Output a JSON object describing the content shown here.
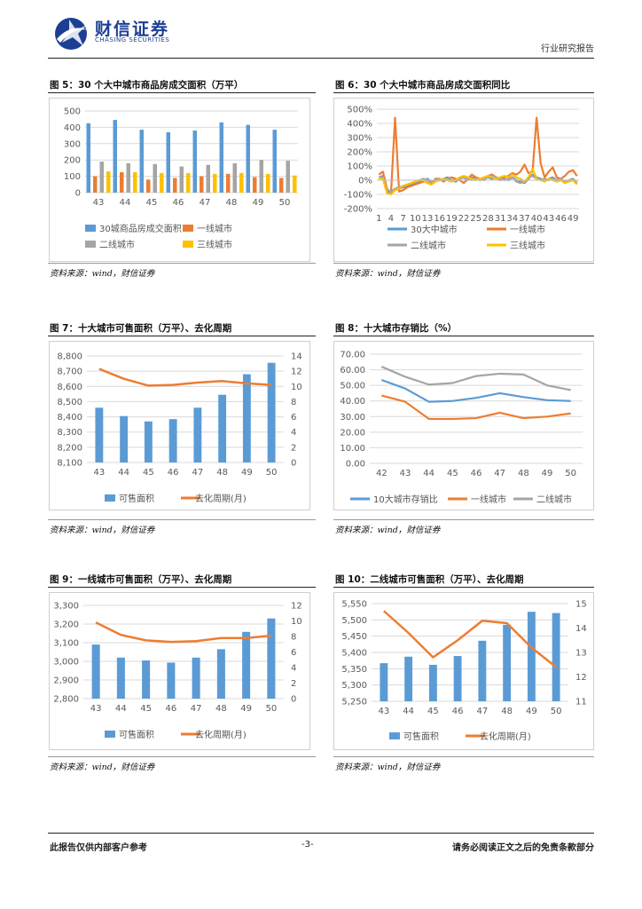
{
  "header": {
    "company_cn": "财信证券",
    "company_en": "CHASING SECURITIES",
    "report_type": "行业研究报告"
  },
  "footer": {
    "left": "此报告仅供内部客户参考",
    "page": "-3-",
    "right": "请务必阅读正文之后的免责条款部分"
  },
  "source_text": "资料来源：wind，财信证券",
  "colors": {
    "blue": "#5B9BD5",
    "orange": "#ED7D31",
    "gray": "#A5A5A5",
    "yellow": "#FFC000"
  },
  "figures": [
    {
      "title": "图 5：30 个大中城市商品房成交面积（万平）"
    },
    {
      "title": "图 6：30 个大中城市商品房成交面积同比"
    },
    {
      "title": "图 7：十大城市可售面积（万平）、去化周期"
    },
    {
      "title": "图 8：十大城市存销比（%）"
    },
    {
      "title": "图 9：一线城市可售面积（万平）、去化周期"
    },
    {
      "title": "图 10：二线城市可售面积（万平）、去化周期"
    }
  ],
  "chart_data": [
    {
      "type": "bar",
      "categories": [
        "43",
        "44",
        "45",
        "46",
        "47",
        "48",
        "49",
        "50"
      ],
      "series": [
        {
          "name": "30城商品房成交面积",
          "color": "#5B9BD5",
          "values": [
            425,
            445,
            385,
            370,
            380,
            430,
            415,
            385
          ]
        },
        {
          "name": "一线城市",
          "color": "#ED7D31",
          "values": [
            100,
            125,
            80,
            90,
            100,
            115,
            95,
            90
          ]
        },
        {
          "name": "二线城市",
          "color": "#A5A5A5",
          "values": [
            190,
            180,
            175,
            160,
            170,
            180,
            200,
            195
          ]
        },
        {
          "name": "三线城市",
          "color": "#FFC000",
          "values": [
            130,
            125,
            120,
            120,
            115,
            120,
            115,
            105
          ]
        }
      ],
      "ylim": [
        0,
        500
      ],
      "yticks": [
        "0",
        "100",
        "200",
        "300",
        "400",
        "500"
      ]
    },
    {
      "type": "line",
      "x": [
        1,
        2,
        3,
        4,
        5,
        6,
        7,
        8,
        9,
        10,
        11,
        12,
        13,
        14,
        15,
        16,
        17,
        18,
        19,
        20,
        21,
        22,
        23,
        24,
        25,
        26,
        27,
        28,
        29,
        30,
        31,
        32,
        33,
        34,
        35,
        36,
        37,
        38,
        39,
        40,
        41,
        42,
        43,
        44,
        45,
        46,
        47,
        48,
        49,
        50
      ],
      "xticks": [
        "1",
        "4",
        "7",
        "10",
        "13",
        "16",
        "19",
        "22",
        "25",
        "28",
        "31",
        "34",
        "37",
        "40",
        "43",
        "46",
        "49"
      ],
      "series": [
        {
          "name": "30大中城市",
          "color": "#5B9BD5",
          "values": [
            20,
            30,
            -80,
            -90,
            -70,
            -60,
            -50,
            -40,
            -30,
            -20,
            -10,
            0,
            10,
            -10,
            0,
            0,
            10,
            20,
            0,
            -10,
            10,
            20,
            0,
            20,
            10,
            0,
            10,
            20,
            10,
            20,
            0,
            10,
            0,
            20,
            0,
            -10,
            -20,
            10,
            40,
            20,
            10,
            0,
            10,
            20,
            0,
            10,
            -10,
            0,
            10,
            -20
          ]
        },
        {
          "name": "一线城市",
          "color": "#ED7D31",
          "values": [
            40,
            60,
            -60,
            -90,
            440,
            -80,
            -70,
            -50,
            -40,
            -30,
            -20,
            -10,
            0,
            -20,
            10,
            10,
            -10,
            10,
            20,
            10,
            0,
            -20,
            10,
            40,
            20,
            10,
            0,
            30,
            40,
            20,
            10,
            20,
            30,
            50,
            40,
            60,
            110,
            50,
            60,
            440,
            120,
            20,
            60,
            90,
            20,
            10,
            30,
            60,
            70,
            30
          ]
        },
        {
          "name": "二线城市",
          "color": "#A5A5A5",
          "values": [
            10,
            20,
            -70,
            -80,
            -60,
            -50,
            -40,
            -30,
            -20,
            -10,
            0,
            10,
            0,
            -10,
            0,
            10,
            0,
            10,
            0,
            0,
            10,
            20,
            10,
            0,
            10,
            0,
            10,
            20,
            30,
            20,
            10,
            0,
            10,
            20,
            -10,
            -20,
            -10,
            20,
            30,
            10,
            0,
            10,
            0,
            10,
            0,
            10,
            -10,
            0,
            10,
            -20
          ]
        },
        {
          "name": "三线城市",
          "color": "#FFC000",
          "values": [
            20,
            10,
            -90,
            -100,
            -70,
            -60,
            -40,
            -30,
            -20,
            -10,
            0,
            0,
            -20,
            -30,
            -10,
            0,
            10,
            0,
            -10,
            0,
            20,
            30,
            20,
            10,
            0,
            10,
            20,
            30,
            20,
            10,
            20,
            30,
            20,
            40,
            20,
            10,
            -10,
            20,
            80,
            10,
            0,
            -10,
            10,
            0,
            -10,
            0,
            -20,
            -10,
            0,
            -30
          ]
        }
      ],
      "ylim": [
        -200,
        500
      ],
      "yticks": [
        "-200%",
        "-100%",
        "0%",
        "100%",
        "200%",
        "300%",
        "400%",
        "500%"
      ]
    },
    {
      "type": "bar+line",
      "categories": [
        "43",
        "44",
        "45",
        "46",
        "47",
        "48",
        "49",
        "50"
      ],
      "bar": {
        "name": "可售面积",
        "color": "#5B9BD5",
        "values": [
          8460,
          8405,
          8370,
          8385,
          8460,
          8545,
          8680,
          8755
        ]
      },
      "line": {
        "name": "去化周期(月)",
        "color": "#ED7D31",
        "values": [
          12.3,
          11.0,
          10.1,
          10.2,
          10.5,
          10.7,
          10.4,
          10.2
        ]
      },
      "ylim_left": [
        8100,
        8800
      ],
      "yticks_left": [
        "8,100",
        "8,200",
        "8,300",
        "8,400",
        "8,500",
        "8,600",
        "8,700",
        "8,800"
      ],
      "ylim_right": [
        0,
        14
      ],
      "yticks_right": [
        "0",
        "2",
        "4",
        "6",
        "8",
        "10",
        "12",
        "14"
      ]
    },
    {
      "type": "line",
      "categories": [
        "42",
        "43",
        "44",
        "45",
        "46",
        "47",
        "48",
        "49",
        "50"
      ],
      "series": [
        {
          "name": "10大城市存销比",
          "color": "#5B9BD5",
          "values": [
            53.5,
            48.0,
            39.5,
            40.0,
            42.0,
            45.0,
            42.5,
            40.5,
            40.0
          ]
        },
        {
          "name": "一线城市",
          "color": "#ED7D31",
          "values": [
            43.5,
            39.5,
            28.5,
            28.5,
            29.0,
            32.5,
            29.0,
            30.0,
            32.0
          ]
        },
        {
          "name": "二线城市",
          "color": "#A5A5A5",
          "values": [
            62.0,
            55.5,
            50.5,
            51.5,
            56.0,
            57.5,
            57.0,
            50.0,
            47.0
          ]
        }
      ],
      "ylim": [
        0,
        70
      ],
      "yticks": [
        "0.00",
        "10.00",
        "20.00",
        "30.00",
        "40.00",
        "50.00",
        "60.00",
        "70.00"
      ]
    },
    {
      "type": "bar+line",
      "categories": [
        "43",
        "44",
        "45",
        "46",
        "47",
        "48",
        "49",
        "50"
      ],
      "bar": {
        "name": "可售面积",
        "color": "#5B9BD5",
        "values": [
          3090,
          3020,
          3005,
          2993,
          3020,
          3065,
          3158,
          3230
        ]
      },
      "line": {
        "name": "去化周期(月)",
        "color": "#ED7D31",
        "values": [
          9.8,
          8.2,
          7.5,
          7.3,
          7.4,
          7.8,
          7.8,
          8.1
        ]
      },
      "ylim_left": [
        2800,
        3300
      ],
      "yticks_left": [
        "2,800",
        "2,900",
        "3,000",
        "3,100",
        "3,200",
        "3,300"
      ],
      "ylim_right": [
        0,
        12
      ],
      "yticks_right": [
        "0",
        "2",
        "4",
        "6",
        "8",
        "10",
        "12"
      ]
    },
    {
      "type": "bar+line",
      "categories": [
        "43",
        "44",
        "45",
        "46",
        "47",
        "48",
        "49",
        "50"
      ],
      "bar": {
        "name": "可售面积",
        "color": "#5B9BD5",
        "values": [
          5367,
          5387,
          5362,
          5389,
          5436,
          5485,
          5525,
          5521
        ]
      },
      "line": {
        "name": "去化周期(月)",
        "color": "#ED7D31",
        "values": [
          14.7,
          13.8,
          12.8,
          13.5,
          14.3,
          14.2,
          13.2,
          12.4
        ]
      },
      "ylim_left": [
        5250,
        5550
      ],
      "yticks_left": [
        "5,250",
        "5,300",
        "5,350",
        "5,400",
        "5,450",
        "5,500",
        "5,550"
      ],
      "ylim_right": [
        11,
        15
      ],
      "yticks_right": [
        "11",
        "12",
        "13",
        "14",
        "15"
      ]
    }
  ]
}
